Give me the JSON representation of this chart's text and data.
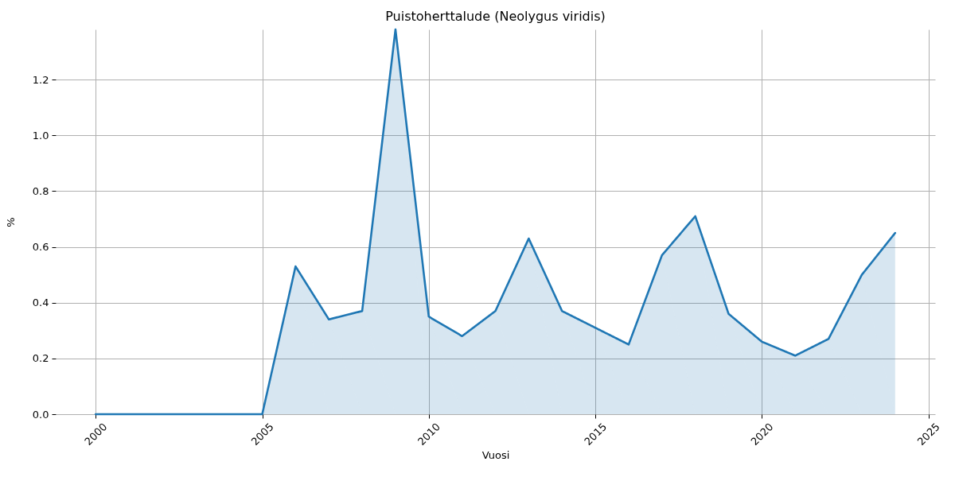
{
  "chart_data": {
    "type": "area",
    "title": "Puistoherttalude (Neolygus viridis)",
    "xlabel": "Vuosi",
    "ylabel": "%",
    "x": [
      2000,
      2001,
      2002,
      2003,
      2004,
      2005,
      2006,
      2007,
      2008,
      2009,
      2010,
      2011,
      2012,
      2013,
      2014,
      2015,
      2016,
      2017,
      2018,
      2019,
      2020,
      2021,
      2022,
      2023,
      2024
    ],
    "series": [
      {
        "color": "#1f77b4",
        "values": [
          0,
          0,
          0,
          0,
          0,
          0,
          0.53,
          0.34,
          0.37,
          1.38,
          0.35,
          0.28,
          0.37,
          0.63,
          0.37,
          0.31,
          0.25,
          0.57,
          0.71,
          0.36,
          0.26,
          0.21,
          0.27,
          0.5,
          0.65
        ]
      }
    ],
    "xlim": [
      1998.8,
      2025.2
    ],
    "ylim": [
      0,
      1.38
    ],
    "xticks": [
      2000,
      2005,
      2010,
      2015,
      2020,
      2025
    ],
    "yticks": [
      {
        "value": 0,
        "label": "0.0"
      },
      0.2,
      0.4,
      0.6,
      0.8,
      {
        "value": 1,
        "label": "1.0"
      },
      1.2
    ],
    "grid": true,
    "line_style": "solid"
  }
}
